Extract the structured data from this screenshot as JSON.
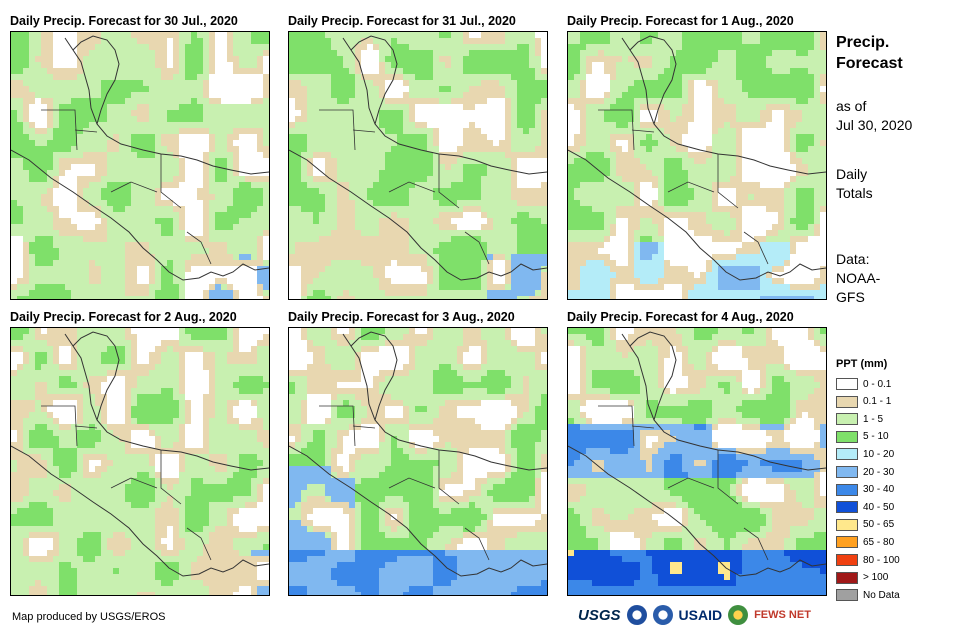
{
  "panels": [
    {
      "title": "Daily Precip. Forecast for 30 Jul., 2020",
      "seed": 11,
      "profile": "dry"
    },
    {
      "title": "Daily Precip. Forecast for 31 Jul., 2020",
      "seed": 23,
      "profile": "mixed"
    },
    {
      "title": "Daily Precip. Forecast for 1 Aug., 2020",
      "seed": 37,
      "profile": "wet-south"
    },
    {
      "title": "Daily Precip. Forecast for 2 Aug., 2020",
      "seed": 41,
      "profile": "mixed"
    },
    {
      "title": "Daily Precip. Forecast for 3 Aug., 2020",
      "seed": 53,
      "profile": "wet"
    },
    {
      "title": "Daily Precip. Forecast for 4 Aug., 2020",
      "seed": 67,
      "profile": "very-wet"
    }
  ],
  "side": {
    "title_line1": "Precip.",
    "title_line2": "Forecast",
    "asof_line1": "as of",
    "asof_line2": "Jul 30, 2020",
    "totals_line1": "Daily",
    "totals_line2": "Totals",
    "data_line1": "Data:",
    "data_line2": "NOAA-",
    "data_line3": "GFS"
  },
  "legend": {
    "title": "PPT (mm)",
    "items": [
      {
        "label": "0 - 0.1",
        "color": "#ffffff"
      },
      {
        "label": "0.1 - 1",
        "color": "#e8d7b0"
      },
      {
        "label": "1 - 5",
        "color": "#c8f0b0"
      },
      {
        "label": "5 - 10",
        "color": "#7fe06a"
      },
      {
        "label": "10 - 20",
        "color": "#b4ecf8"
      },
      {
        "label": "20 - 30",
        "color": "#80b8f0"
      },
      {
        "label": "30 - 40",
        "color": "#3c88e8"
      },
      {
        "label": "40 - 50",
        "color": "#1050d8"
      },
      {
        "label": "50 - 65",
        "color": "#ffe88c"
      },
      {
        "label": "65 - 80",
        "color": "#ffa020"
      },
      {
        "label": "80 - 100",
        "color": "#f04010"
      },
      {
        "label": "> 100",
        "color": "#a01818"
      },
      {
        "label": "No Data",
        "color": "#a0a0a0"
      }
    ]
  },
  "credit": "Map produced by USGS/EROS",
  "logos": {
    "usgs": "USGS",
    "usaid": "USAID",
    "fews": "FEWS NET"
  }
}
